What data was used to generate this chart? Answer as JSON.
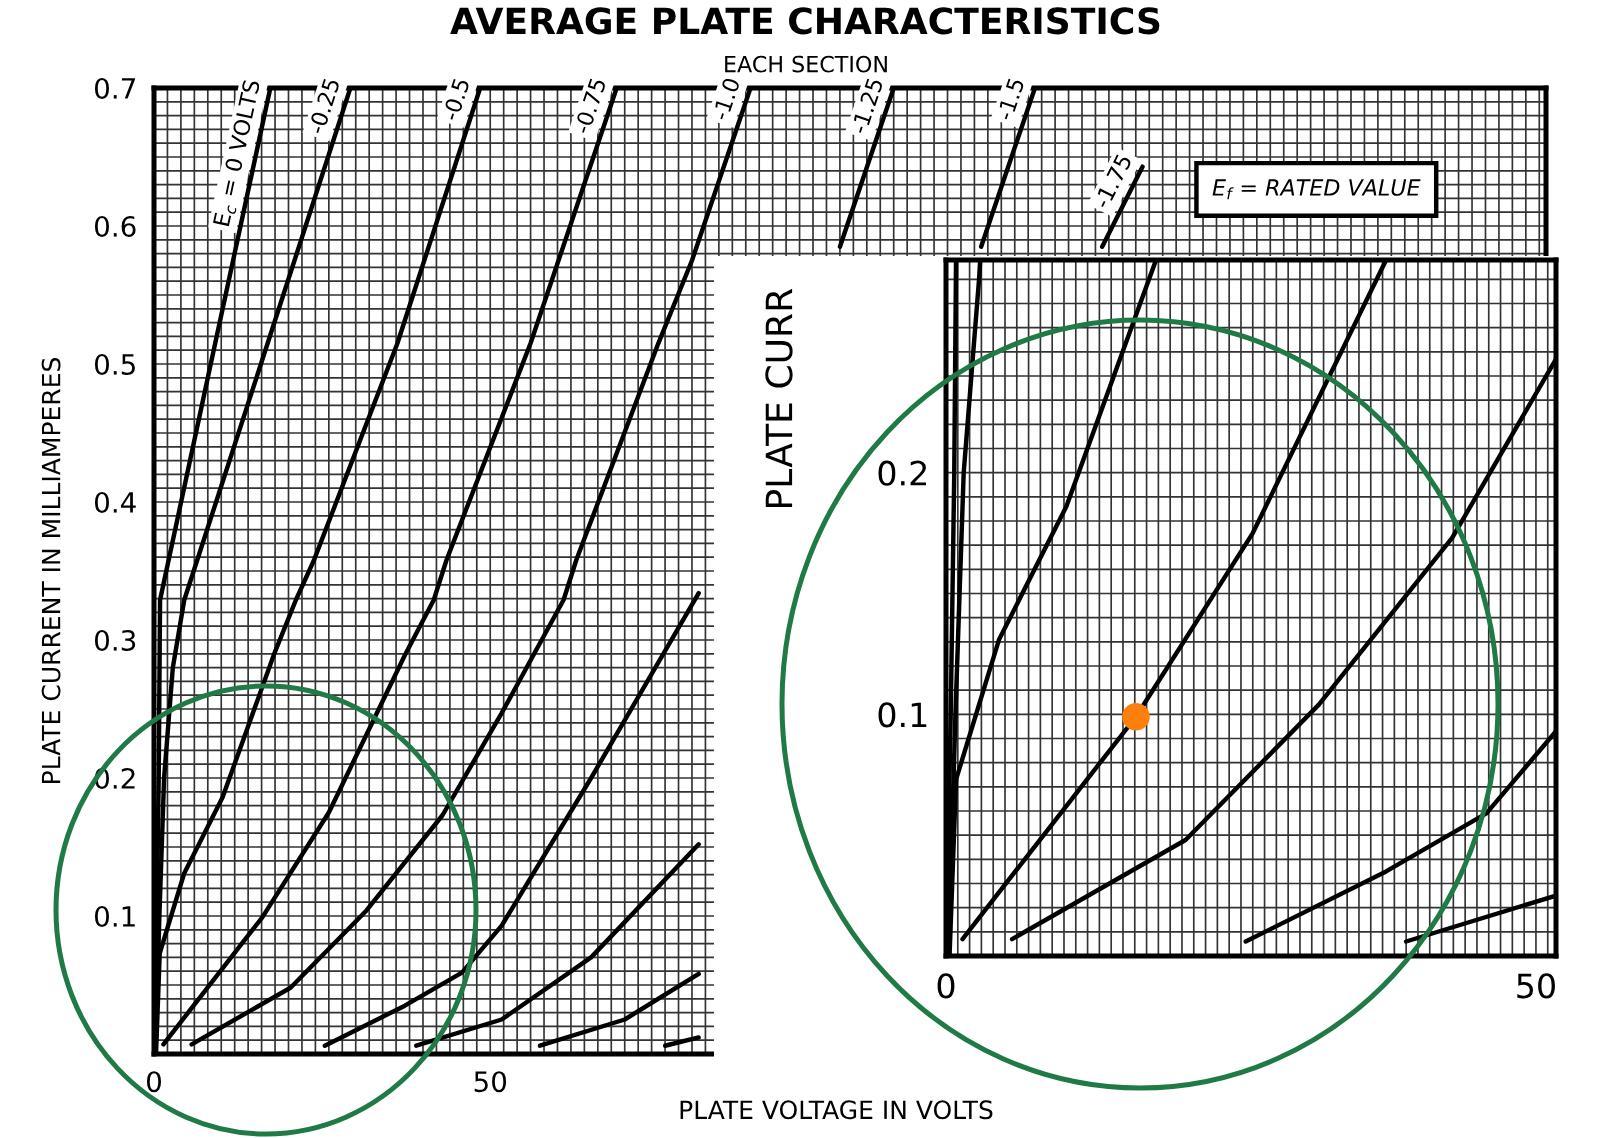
{
  "chart_data": [
    {
      "type": "line",
      "title": "AVERAGE PLATE CHARACTERISTICS",
      "subtitle": "EACH SECTION",
      "xlabel": "PLATE VOLTAGE IN VOLTS",
      "ylabel": "PLATE CURRENT IN MILLIAMPERES",
      "annotations": [
        "E$_{f}$ = RATED VALUE"
      ],
      "xlim": [
        0,
        207
      ],
      "ylim": [
        0,
        0.7
      ],
      "xticks": [
        0,
        50
      ],
      "yticks": [
        0.1,
        0.2,
        0.3,
        0.4,
        0.5,
        0.6,
        0.7
      ],
      "grid": true,
      "series": [
        {
          "name": "E$_{c}$ = 0 VOLTS",
          "color": "#000000",
          "x": [
            0,
            0.4,
            0.7,
            0.9,
            9.1,
            17.3
          ],
          "values": [
            0,
            0.1,
            0.2,
            0.329,
            0.515,
            0.7
          ]
        },
        {
          "name": "-0.25",
          "color": "#000000",
          "x": [
            0.2,
            0.8,
            1.5,
            2.8,
            4.5,
            16.9,
            29.2
          ],
          "values": [
            0,
            0.1,
            0.2,
            0.28,
            0.329,
            0.515,
            0.7
          ]
        },
        {
          "name": "-0.5",
          "color": "#000000",
          "x": [
            0.3,
            0.85,
            4.5,
            10.2,
            17.8,
            21.1,
            23.8,
            36.2,
            48.5
          ],
          "values": [
            0,
            0.073,
            0.131,
            0.186,
            0.289,
            0.329,
            0.358,
            0.515,
            0.7
          ]
        },
        {
          "name": "-0.75",
          "color": "#000000",
          "x": [
            1.4,
            16.1,
            26,
            37.3,
            41.6,
            43.5,
            56,
            68.8
          ],
          "values": [
            0.007,
            0.099,
            0.175,
            0.289,
            0.329,
            0.358,
            0.515,
            0.7
          ]
        },
        {
          "name": "-1.0",
          "color": "#000000",
          "x": [
            5.6,
            20.3,
            31.6,
            42.9,
            51.7,
            60.9,
            62.8,
            75,
            80,
            88.7
          ],
          "values": [
            0.007,
            0.048,
            0.104,
            0.173,
            0.247,
            0.329,
            0.358,
            0.515,
            0.575,
            0.7
          ]
        },
        {
          "name": "-1.25",
          "color": "#000000",
          "x": [
            25.4,
            37.3,
            45.8,
            51.7,
            65,
            81,
            91,
            102,
            110
          ],
          "values": [
            0.006,
            0.035,
            0.059,
            0.093,
            0.2,
            0.334,
            null,
            0.585,
            0.7
          ]
        },
        {
          "name": "-1.5",
          "color": "#000000",
          "x": [
            39,
            51.7,
            65,
            81,
            101,
            123,
            131
          ],
          "values": [
            0.006,
            0.025,
            0.07,
            0.152,
            null,
            0.585,
            0.7
          ]
        },
        {
          "name": "-1.75",
          "color": "#000000",
          "x": [
            57.4,
            70,
            81,
            120,
            141,
            147
          ],
          "values": [
            0.006,
            0.025,
            0.058,
            null,
            0.585,
            0.643
          ]
        },
        {
          "color": "#000000",
          "x": [
            76,
            81
          ],
          "values": [
            0.006,
            0.012
          ]
        }
      ]
    },
    {
      "type": "line",
      "ylabel": "PLATE CURR",
      "xlim": [
        0,
        51.7
      ],
      "ylim": [
        0,
        0.288
      ],
      "xticks": [
        0,
        {
          "value": 1,
          "label": null
        },
        {
          "value": 2,
          "label": null
        },
        {
          "value": 3,
          "label": null
        },
        {
          "value": 4,
          "label": null
        },
        {
          "value": 5,
          "label": null
        },
        {
          "value": 6,
          "label": null
        },
        {
          "value": 7,
          "label": null
        },
        {
          "value": 8,
          "label": null
        },
        {
          "value": 9,
          "label": null
        },
        {
          "value": 10,
          "label": null
        },
        {
          "value": 11,
          "label": null
        },
        {
          "value": 12,
          "label": null
        },
        {
          "value": 13,
          "label": null
        },
        {
          "value": 14,
          "label": null
        },
        {
          "value": 15,
          "label": null
        },
        {
          "value": 16,
          "label": null
        },
        {
          "value": 17,
          "label": null
        },
        {
          "value": 18,
          "label": null
        },
        {
          "value": 19,
          "label": null
        },
        {
          "value": 20,
          "label": null
        },
        {
          "value": 21,
          "label": null
        },
        {
          "value": 22,
          "label": null
        },
        {
          "value": 23,
          "label": null
        },
        {
          "value": 24,
          "label": null
        },
        {
          "value": 25,
          "label": null
        },
        {
          "value": 26,
          "label": null
        },
        {
          "value": 27,
          "label": null
        },
        {
          "value": 28,
          "label": null
        },
        {
          "value": 29,
          "label": null
        },
        {
          "value": 30,
          "label": null
        },
        {
          "value": 31,
          "label": null
        },
        {
          "value": 32,
          "label": null
        },
        {
          "value": 33,
          "label": null
        },
        {
          "value": 34,
          "label": null
        },
        {
          "value": 35,
          "label": null
        },
        {
          "value": 36,
          "label": null
        },
        {
          "value": 37,
          "label": null
        },
        {
          "value": 38,
          "label": null
        },
        {
          "value": 39,
          "label": null
        },
        {
          "value": 40,
          "label": null
        },
        {
          "value": 41,
          "label": null
        },
        {
          "value": 42,
          "label": null
        },
        {
          "value": 43,
          "label": null
        },
        {
          "value": 44,
          "label": null
        },
        {
          "value": 45,
          "label": null
        },
        {
          "value": 46,
          "label": null
        },
        {
          "value": 47,
          "label": null
        },
        {
          "value": 48,
          "label": null
        },
        {
          "value": 49,
          "label": null
        },
        50,
        {
          "value": 51,
          "label": null
        }
      ],
      "yticks": [
        {
          "value": 0.01,
          "label": null
        },
        {
          "value": 0.02,
          "label": null
        },
        {
          "value": 0.03,
          "label": null
        },
        {
          "value": 0.04,
          "label": null
        },
        {
          "value": 0.05,
          "label": null
        },
        {
          "value": 0.06,
          "label": null
        },
        {
          "value": 0.07,
          "label": null
        },
        {
          "value": 0.08,
          "label": null
        },
        {
          "value": 0.09,
          "label": null
        },
        0.1,
        {
          "value": 0.11,
          "label": null
        },
        {
          "value": 0.12,
          "label": null
        },
        {
          "value": 0.13,
          "label": null
        },
        {
          "value": 0.14,
          "label": null
        },
        {
          "value": 0.15,
          "label": null
        },
        {
          "value": 0.16,
          "label": null
        },
        {
          "value": 0.17,
          "label": null
        },
        {
          "value": 0.18,
          "label": null
        },
        {
          "value": 0.19,
          "label": null
        },
        0.2,
        {
          "value": 0.21,
          "label": null
        },
        {
          "value": 0.22,
          "label": null
        },
        {
          "value": 0.23,
          "label": null
        },
        {
          "value": 0.24,
          "label": null
        },
        {
          "value": 0.25,
          "label": null
        },
        {
          "value": 0.26,
          "label": null
        },
        {
          "value": 0.27,
          "label": null
        },
        {
          "value": 0.28,
          "label": null
        }
      ],
      "grid": true,
      "series": [
        {
          "color": "#000000",
          "x": [
            0,
            0.4,
            0.7,
            0.85
          ],
          "values": [
            0,
            0.1,
            0.2,
            0.288
          ]
        },
        {
          "color": "#000000",
          "x": [
            0.2,
            0.8,
            1.5,
            2.8,
            2.9
          ],
          "values": [
            0,
            0.1,
            0.2,
            0.28,
            0.288
          ]
        },
        {
          "color": "#000000",
          "x": [
            0.3,
            0.85,
            4.5,
            10.2,
            17.8
          ],
          "values": [
            0,
            0.073,
            0.131,
            0.186,
            0.288
          ]
        },
        {
          "color": "#000000",
          "x": [
            1.4,
            16.1,
            26,
            37.3
          ],
          "values": [
            0.007,
            0.099,
            0.175,
            0.288
          ]
        },
        {
          "color": "#000000",
          "x": [
            5.6,
            20.3,
            31.6,
            42.9,
            51.7
          ],
          "values": [
            0.007,
            0.048,
            0.104,
            0.173,
            0.247
          ]
        },
        {
          "color": "#000000",
          "x": [
            25.4,
            37.3,
            45.8,
            51.7
          ],
          "values": [
            0.006,
            0.035,
            0.059,
            0.093
          ]
        },
        {
          "color": "#000000",
          "x": [
            39,
            51.7
          ],
          "values": [
            0.006,
            0.025
          ]
        },
        {
          "type": "scatter",
          "color": "#ff7f0e",
          "x": [
            16.1
          ],
          "values": [
            0.099
          ]
        }
      ]
    }
  ]
}
